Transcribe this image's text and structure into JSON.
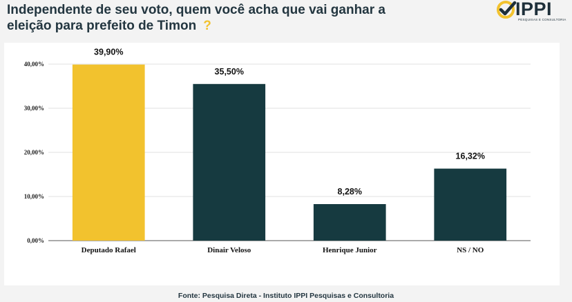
{
  "title": {
    "line1": "Independente de seu voto, quem você acha que vai ganhar a",
    "line2": "eleição para prefeito de Timon",
    "qmark": "?"
  },
  "logo": {
    "name": "IPPI",
    "subtitle": "PESQUISAS E CONSULTORIA",
    "icon": "check-circle-icon"
  },
  "source": "Fonte: Pesquisa Direta - Instituto IPPI Pesquisas e Consultoria",
  "colors": {
    "highlight": "#f2c22e",
    "bar": "#163a40",
    "title": "#233640"
  },
  "chart_data": {
    "type": "bar",
    "categories": [
      "Deputado Rafael",
      "Dinair Veloso",
      "Henrique Junior",
      "NS / NO"
    ],
    "values": [
      39.9,
      35.5,
      8.28,
      16.32
    ],
    "value_labels": [
      "39,90%",
      "35,50%",
      "8,28%",
      "16,32%"
    ],
    "highlight_index": 0,
    "ylim": [
      0,
      40
    ],
    "yticks": [
      0,
      10,
      20,
      30,
      40
    ],
    "ytick_labels": [
      "0,00%",
      "10,00%",
      "20,00%",
      "30,00%",
      "40,00%"
    ],
    "grid": true,
    "xlabel": "",
    "ylabel": ""
  }
}
